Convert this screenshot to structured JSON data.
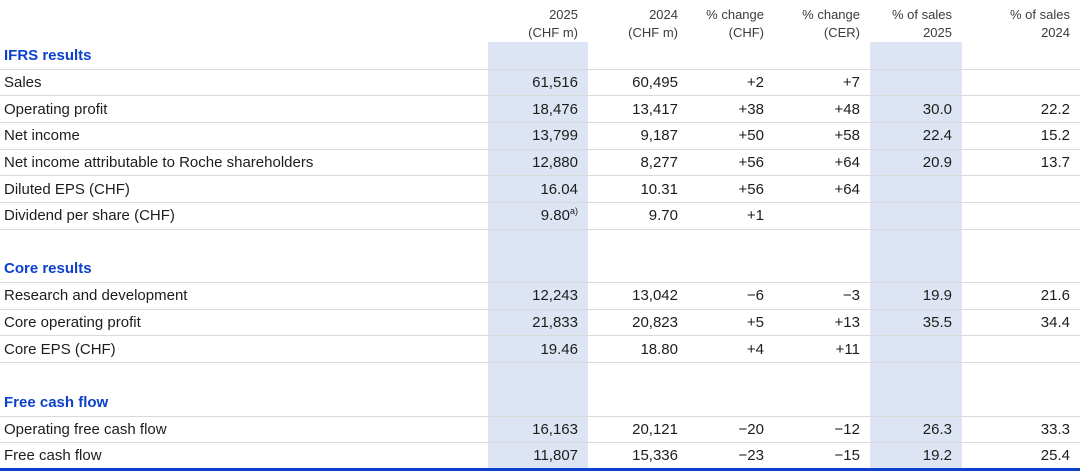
{
  "colors": {
    "accent": "#0b41cd",
    "column_highlight": "#dde5f4",
    "row_divider": "#d9d9d9"
  },
  "header": {
    "columns": [
      {
        "line1": "2025",
        "line2": "(CHF m)",
        "highlight": true
      },
      {
        "line1": "2024",
        "line2": "(CHF m)",
        "highlight": false
      },
      {
        "line1": "% change",
        "line2": "(CHF)",
        "highlight": false
      },
      {
        "line1": "% change",
        "line2": "(CER)",
        "highlight": false
      },
      {
        "line1": "% of sales",
        "line2": "2025",
        "highlight": true
      },
      {
        "line1": "% of sales",
        "line2": "2024",
        "highlight": false
      }
    ]
  },
  "sections": [
    {
      "title": "IFRS results",
      "rows": [
        {
          "label": "Sales",
          "values": [
            "61,516",
            "60,495",
            "+2",
            "+7",
            "",
            ""
          ]
        },
        {
          "label": "Operating profit",
          "values": [
            "18,476",
            "13,417",
            "+38",
            "+48",
            "30.0",
            "22.2"
          ]
        },
        {
          "label": "Net income",
          "values": [
            "13,799",
            "9,187",
            "+50",
            "+58",
            "22.4",
            "15.2"
          ]
        },
        {
          "label": "Net income attributable to Roche shareholders",
          "values": [
            "12,880",
            "8,277",
            "+56",
            "+64",
            "20.9",
            "13.7"
          ]
        },
        {
          "label": "Diluted EPS (CHF)",
          "values": [
            "16.04",
            "10.31",
            "+56",
            "+64",
            "",
            ""
          ]
        },
        {
          "label": "Dividend per share (CHF)",
          "values": [
            "9.80",
            "9.70",
            "+1",
            "",
            "",
            ""
          ],
          "note": {
            "col": 0,
            "text": "a)"
          }
        }
      ]
    },
    {
      "title": "Core results",
      "rows": [
        {
          "label": "Research and development",
          "values": [
            "12,243",
            "13,042",
            "−6",
            "−3",
            "19.9",
            "21.6"
          ]
        },
        {
          "label": "Core operating profit",
          "values": [
            "21,833",
            "20,823",
            "+5",
            "+13",
            "35.5",
            "34.4"
          ]
        },
        {
          "label": "Core EPS (CHF)",
          "values": [
            "19.46",
            "18.80",
            "+4",
            "+11",
            "",
            ""
          ]
        }
      ]
    },
    {
      "title": "Free cash flow",
      "rows": [
        {
          "label": "Operating free cash flow",
          "values": [
            "16,163",
            "20,121",
            "−20",
            "−12",
            "26.3",
            "33.3"
          ]
        },
        {
          "label": "Free cash flow",
          "values": [
            "11,807",
            "15,336",
            "−23",
            "−15",
            "19.2",
            "25.4"
          ]
        }
      ]
    }
  ]
}
